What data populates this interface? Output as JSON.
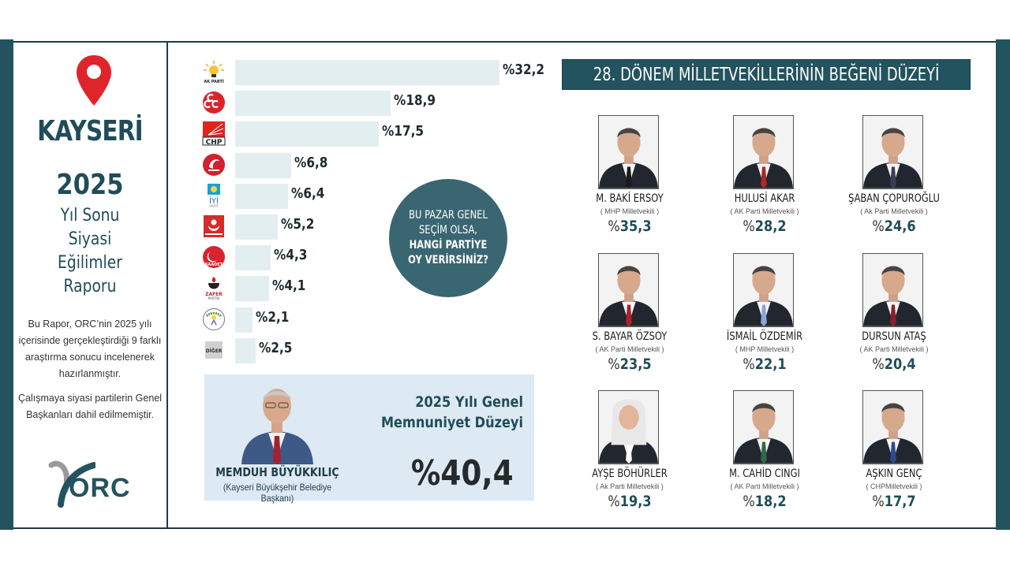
{
  "left_panel": {
    "city": "KAYSERİ",
    "year": "2025",
    "report_title_lines": [
      "Yıl Sonu",
      "Siyasi",
      "Eğilimler",
      "Raporu"
    ],
    "description": "Bu Rapor, ORC’nin 2025 yılı içerisinde gerçekleştirdiği 9 farklı araştırma sonucu incelenerek hazırlanmıştır.",
    "note": "Çalışmaya siyasi partilerin Genel Başkanları dahil edilmemiştir.",
    "logo_text": "ORC"
  },
  "poll": {
    "question_lines": [
      "BU PAZAR GENEL",
      "SEÇİM OLSA,",
      "HANGİ PARTİYE",
      "OY VERİRSİNİZ?"
    ],
    "parties": [
      {
        "name": "AK PARTİ",
        "logo_text": "AK PARTİ",
        "value": 32.2,
        "label": "%32,2",
        "color": "#f5a623"
      },
      {
        "name": "MHP",
        "logo_text": "",
        "value": 18.9,
        "label": "%18,9",
        "color": "#d7262b"
      },
      {
        "name": "CHP",
        "logo_text": "CHP",
        "value": 17.5,
        "label": "%17,5",
        "color": "#e1241f"
      },
      {
        "name": "Yeniden Refah",
        "logo_text": "",
        "value": 6.8,
        "label": "%6,8",
        "color": "#d22030"
      },
      {
        "name": "İYİ Parti",
        "logo_text": "İYİ",
        "value": 6.4,
        "label": "%6,4",
        "color": "#19a0d8"
      },
      {
        "name": "BBP",
        "logo_text": "",
        "value": 5.2,
        "label": "%5,2",
        "color": "#d52b2b"
      },
      {
        "name": "Saadet",
        "logo_text": "SAADET",
        "value": 4.3,
        "label": "%4,3",
        "color": "#d9232e"
      },
      {
        "name": "Zafer Partisi",
        "logo_text": "ZAFER",
        "value": 4.1,
        "label": "%4,1",
        "color": "#c5262b"
      },
      {
        "name": "DEM Parti",
        "logo_text": "",
        "value": 2.1,
        "label": "%2,1",
        "color": "#6c9b37"
      },
      {
        "name": "Diğer",
        "logo_text": "DİĞER",
        "value": 2.5,
        "label": "%2,5",
        "color": "#9a9a9a"
      }
    ]
  },
  "mayor": {
    "name": "MEMDUH BÜYÜKKILIÇ",
    "title": "(Kayseri Büyükşehir Belediye Başkanı)",
    "satisfaction_title_lines": [
      "2025 Yılı Genel",
      "Memnuniyet Düzeyi"
    ],
    "satisfaction_value": "%40,4"
  },
  "mps": {
    "header": "28. DÖNEM MİLLETVEKİLLERİNİN BEĞENİ DÜZEYİ",
    "items": [
      {
        "name": "M. BAKİ ERSOY",
        "party": "( MHP Milletvekili )",
        "score": "35,3",
        "tie": "#1b1b1b"
      },
      {
        "name": "HULUSİ AKAR",
        "party": "( AK Parti Milletvekili )",
        "score": "28,2",
        "tie": "#a52a2a"
      },
      {
        "name": "ŞABAN ÇOPUROĞLU",
        "party": "( Ak Parti Milletvekili )",
        "score": "24,6",
        "tie": "#3a3f55"
      },
      {
        "name": "S. BAYAR ÖZSOY",
        "party": "( AK Parti Milletvekili )",
        "score": "23,5",
        "tie": "#b0202a"
      },
      {
        "name": "İSMAİL ÖZDEMİR",
        "party": "( MHP Milletvekili )",
        "score": "22,1",
        "tie": "#8aa8d8"
      },
      {
        "name": "DURSUN ATAŞ",
        "party": "( AK Parti Milletvekili )",
        "score": "20,4",
        "tie": "#8b1f2d"
      },
      {
        "name": "AYŞE BÖHÜRLER",
        "party": "( Ak Parti Milletvekili )",
        "score": "19,3",
        "tie": "#ffffff"
      },
      {
        "name": "M. CAHİD CINGI",
        "party": "( AK Parti Milletvekili )",
        "score": "18,2",
        "tie": "#2e6b45"
      },
      {
        "name": "AŞKIN GENÇ",
        "party": "( CHPMilletvekili )",
        "score": "17,7",
        "tie": "#2f4a8a"
      }
    ]
  },
  "chart_data": {
    "type": "bar",
    "title": "BU PAZAR GENEL SEÇİM OLSA, HANGİ PARTİYE OY VERİRSİNİZ?",
    "categories": [
      "AK PARTİ",
      "MHP",
      "CHP",
      "Yeniden Refah",
      "İYİ Parti",
      "BBP",
      "Saadet",
      "Zafer Partisi",
      "DEM Parti",
      "Diğer"
    ],
    "values": [
      32.2,
      18.9,
      17.5,
      6.8,
      6.4,
      5.2,
      4.3,
      4.1,
      2.1,
      2.5
    ],
    "orientation": "horizontal",
    "value_format": "%",
    "xlabel": "",
    "ylabel": "",
    "grid": false,
    "secondary": [
      {
        "type": "bar",
        "title": "28. DÖNEM MİLLETVEKİLLERİNİN BEĞENİ DÜZEYİ",
        "categories": [
          "M. BAKİ ERSOY",
          "HULUSİ AKAR",
          "ŞABAN ÇOPUROĞLU",
          "S. BAYAR ÖZSOY",
          "İSMAİL ÖZDEMİR",
          "DURSUN ATAŞ",
          "AYŞE BÖHÜRLER",
          "M. CAHİD CINGI",
          "AŞKIN GENÇ"
        ],
        "values": [
          35.3,
          28.2,
          24.6,
          23.5,
          22.1,
          20.4,
          19.3,
          18.2,
          17.7
        ]
      },
      {
        "type": "table",
        "title": "2025 Yılı Genel Memnuniyet Düzeyi",
        "categories": [
          "MEMDUH BÜYÜKKILIÇ"
        ],
        "values": [
          40.4
        ]
      }
    ]
  }
}
